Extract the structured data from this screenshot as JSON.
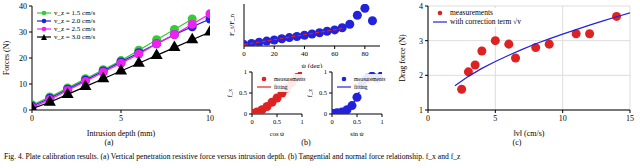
{
  "caption": "Fig. 4.   Plate calibration results. (a) Vertical penetration resistive force versus intrusion depth. (b) Tangential and normal force relationship. f_x and f_z",
  "chart_data": [
    {
      "label": "(a)",
      "type": "line",
      "x_label": "Intrusion depth (mm)",
      "y_label": "Forces (N)",
      "xlim": [
        0,
        10
      ],
      "xticks": [
        0,
        5,
        10
      ],
      "ylim": [
        0,
        40
      ],
      "yticks": [
        0,
        10,
        20,
        30,
        40
      ],
      "legend": "upper left",
      "series": [
        {
          "name": "v_z = 1.5 cm/s",
          "type": "line",
          "color": "#33cc33",
          "marker": "circle",
          "line_style": "solid",
          "x": [
            0,
            1,
            2,
            3,
            4,
            5,
            6,
            7,
            8,
            9
          ],
          "values": [
            2,
            5,
            8.5,
            12,
            15.5,
            19,
            23,
            27,
            31,
            35
          ]
        },
        {
          "name": "v_z = 2.0 cm/s",
          "type": "line",
          "color": "#2222dd",
          "marker": "circle",
          "line_style": "solid",
          "x": [
            0,
            1,
            2,
            3,
            4,
            5,
            6,
            7,
            8,
            9,
            10
          ],
          "values": [
            1.5,
            4.5,
            8,
            11.5,
            15,
            18.5,
            22,
            25.5,
            29,
            32,
            35
          ]
        },
        {
          "name": "v_z = 2.5 cm/s",
          "type": "line",
          "color": "#ee22ee",
          "marker": "circle",
          "line_style": "solid",
          "x": [
            0,
            1,
            2,
            3,
            4,
            5,
            6,
            7,
            8,
            9,
            10
          ],
          "values": [
            1,
            4,
            7.5,
            11,
            14.5,
            18,
            21.5,
            25.5,
            29,
            33,
            37
          ]
        },
        {
          "name": "v_z = 3.0 cm/s",
          "type": "line",
          "color": "#000000",
          "marker": "triangle",
          "line_style": "solid",
          "x": [
            0,
            1,
            2,
            3,
            4,
            5,
            6,
            7,
            8,
            9,
            10
          ],
          "values": [
            0.5,
            3,
            6,
            9,
            12,
            15,
            18,
            21,
            24,
            27,
            30
          ]
        }
      ]
    },
    {
      "label": "(b)",
      "type": "scatter",
      "x_label": "ψ (deg)",
      "y_label": "F_t/F_n",
      "xlim": [
        0,
        90
      ],
      "xticks": [
        0,
        20,
        40,
        60,
        80
      ],
      "ylim": [
        0,
        3
      ],
      "tick_labels": "x",
      "series": [
        {
          "type": "scatter",
          "color": "#2222dd",
          "marker": "circle",
          "x": [
            0,
            5,
            10,
            15,
            20,
            25,
            30,
            35,
            40,
            45,
            50,
            55,
            60,
            65,
            70,
            75,
            80,
            85
          ],
          "values": [
            0.1,
            0.18,
            0.27,
            0.35,
            0.43,
            0.52,
            0.6,
            0.68,
            0.77,
            0.86,
            0.95,
            1.05,
            1.15,
            1.3,
            1.55,
            2.2,
            2.7,
            1.8
          ]
        },
        {
          "type": "line",
          "color": "#dd2222",
          "line_style": "dashed",
          "x": [
            0,
            65
          ],
          "values": [
            0.1,
            1.25
          ]
        }
      ]
    },
    {
      "type": "scatter",
      "x_label": "cos ψ",
      "y_label": "f_x",
      "xlim": [
        0,
        1
      ],
      "xticks": [
        0,
        0.5,
        1
      ],
      "ylim": [
        0,
        1
      ],
      "yticks": [
        0,
        0.5,
        1
      ],
      "legend": "upper left",
      "series": [
        {
          "name": "measurements",
          "type": "scatter",
          "color": "#dd2222",
          "marker": "circle",
          "x": [
            0,
            0.1,
            0.2,
            0.3,
            0.4,
            0.5,
            0.6,
            0.7,
            0.8,
            0.9,
            1
          ],
          "values": [
            0.02,
            0.05,
            0.1,
            0.18,
            0.28,
            0.38,
            0.5,
            0.62,
            0.75,
            0.87,
            0.95
          ]
        },
        {
          "name": "fitting",
          "type": "line",
          "color": "#dd2222",
          "line_style": "solid",
          "x": [
            0,
            0.2,
            0.4,
            0.6,
            0.8,
            1
          ],
          "values": [
            0.01,
            0.09,
            0.27,
            0.5,
            0.74,
            0.96
          ]
        }
      ]
    },
    {
      "type": "scatter",
      "x_label": "sin ψ",
      "y_label": "f_z",
      "xlim": [
        0,
        1
      ],
      "xticks": [
        0,
        0.5,
        1
      ],
      "ylim": [
        0,
        1
      ],
      "yticks": [
        0,
        0.5,
        1
      ],
      "legend": "upper left",
      "series": [
        {
          "name": "measurements",
          "type": "scatter",
          "color": "#2222dd",
          "marker": "circle",
          "x": [
            0,
            0.1,
            0.2,
            0.3,
            0.4,
            0.5,
            0.6,
            0.7,
            0.8,
            0.9,
            1
          ],
          "values": [
            0.02,
            0.03,
            0.05,
            0.1,
            0.2,
            0.4,
            0.7,
            0.85,
            0.9,
            0.85,
            0.92
          ]
        },
        {
          "name": "fitting",
          "type": "line",
          "color": "#2222dd",
          "line_style": "solid",
          "x": [
            0,
            0.2,
            0.3,
            0.4,
            0.5,
            0.6,
            0.7,
            0.8,
            1
          ],
          "values": [
            0.02,
            0.04,
            0.09,
            0.2,
            0.42,
            0.66,
            0.8,
            0.86,
            0.88
          ]
        }
      ]
    },
    {
      "label": "(c)",
      "type": "scatter",
      "x_label": "‖v‖ (cm/s)",
      "y_label": "Drag force (N)",
      "xlim": [
        0,
        15
      ],
      "xticks": [
        0,
        5,
        10,
        15
      ],
      "ylim": [
        1,
        4
      ],
      "yticks": [
        1,
        2,
        3,
        4
      ],
      "grid": true,
      "legend": "upper left",
      "series": [
        {
          "name": "measurements",
          "type": "scatter",
          "color": "#dd2222",
          "marker": "circle",
          "x": [
            2.5,
            3,
            3.5,
            4,
            5,
            6,
            6.5,
            8,
            9,
            11,
            12,
            14
          ],
          "values": [
            1.6,
            2.1,
            2.3,
            2.7,
            3.0,
            2.9,
            2.5,
            2.8,
            2.9,
            3.2,
            3.2,
            3.7
          ]
        },
        {
          "name": "with correction term √v",
          "type": "line",
          "color": "#2222dd",
          "line_style": "solid",
          "x": [
            2,
            3,
            4,
            5,
            6,
            7,
            8,
            9,
            10,
            11,
            12,
            13,
            14,
            15
          ],
          "values": [
            1.7,
            1.97,
            2.2,
            2.4,
            2.58,
            2.75,
            2.91,
            3.05,
            3.19,
            3.32,
            3.45,
            3.57,
            3.69,
            3.8
          ]
        }
      ]
    }
  ]
}
